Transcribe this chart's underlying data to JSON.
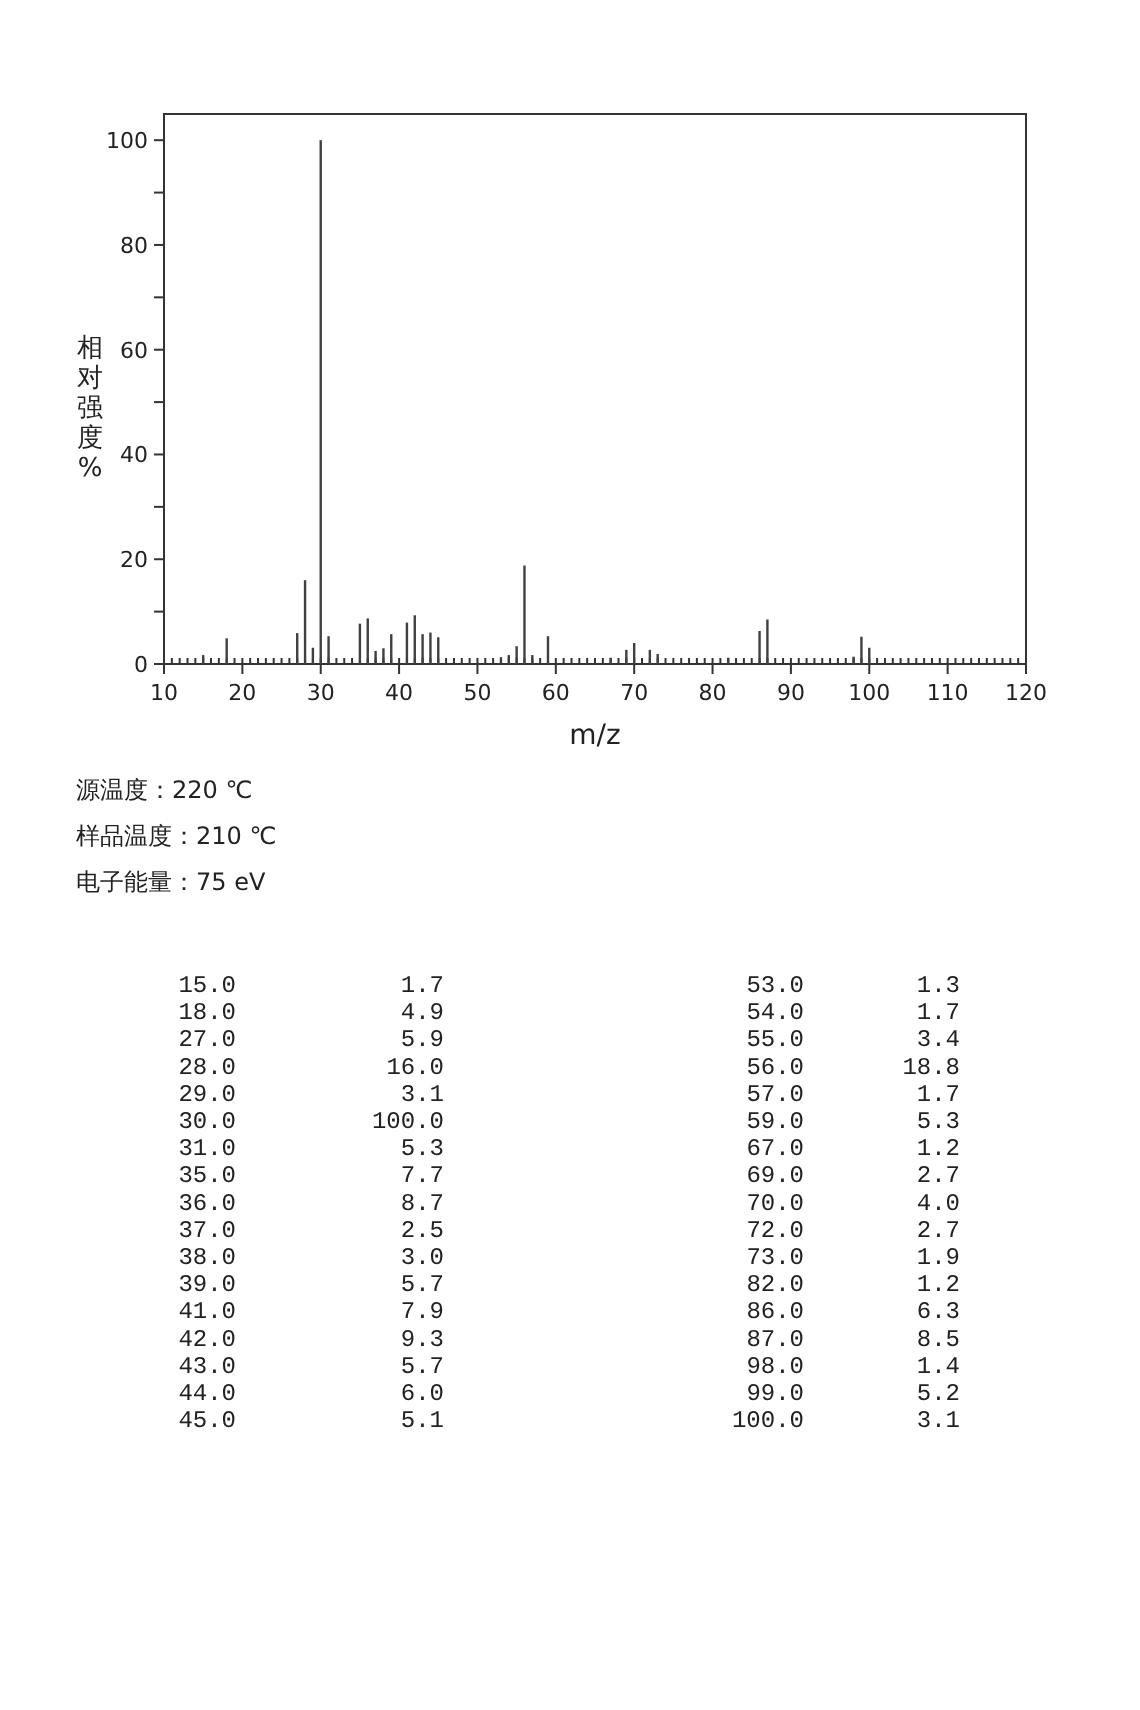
{
  "chart_data": {
    "type": "bar",
    "xlabel": "m/z",
    "ylabel": "相对强度%",
    "x": [
      15,
      18,
      27,
      28,
      29,
      30,
      31,
      35,
      36,
      37,
      38,
      39,
      41,
      42,
      43,
      44,
      45,
      53,
      54,
      55,
      56,
      57,
      59,
      67,
      69,
      70,
      72,
      73,
      82,
      86,
      87,
      98,
      99,
      100
    ],
    "values": [
      1.7,
      4.9,
      5.9,
      16.0,
      3.1,
      100.0,
      5.3,
      7.7,
      8.7,
      2.5,
      3.0,
      5.7,
      7.9,
      9.3,
      5.7,
      6.0,
      5.1,
      1.3,
      1.7,
      3.4,
      18.8,
      1.7,
      5.3,
      1.2,
      2.7,
      4.0,
      2.7,
      1.9,
      1.2,
      6.3,
      8.5,
      1.4,
      5.2,
      3.1
    ],
    "color": "#404040",
    "xlim": [
      10,
      120
    ],
    "xticks": [
      10,
      20,
      30,
      40,
      50,
      60,
      70,
      80,
      90,
      100,
      110,
      120
    ],
    "ylim": [
      0,
      105
    ],
    "yticks": [
      0,
      {
        "value": 10,
        "label": null
      },
      20,
      {
        "value": 30,
        "label": null
      },
      40,
      {
        "value": 50,
        "label": null
      },
      60,
      {
        "value": 70,
        "label": null
      },
      80,
      {
        "value": 90,
        "label": null
      },
      100
    ],
    "grid": false,
    "annotations": [
      "源温度：220 ℃",
      "样品温度：210 ℃",
      "电子能量：75 eV",
      "15.0",
      "1.7",
      "18.0",
      "4.9",
      "27.0",
      "5.9",
      "28.0",
      "16.0",
      "29.0",
      "3.1",
      "30.0",
      "100.0",
      "31.0",
      "5.3",
      "35.0",
      "7.7",
      "36.0",
      "8.7",
      "37.0",
      "2.5",
      "38.0",
      "3.0",
      "39.0",
      "5.7",
      "41.0",
      "7.9",
      "42.0",
      "9.3",
      "43.0",
      "5.7",
      "44.0",
      "6.0",
      "45.0",
      "5.1",
      "53.0",
      "1.3",
      "54.0",
      "1.7",
      "55.0",
      "3.4",
      "56.0",
      "18.8",
      "57.0",
      "1.7",
      "59.0",
      "5.3",
      "67.0",
      "1.2",
      "69.0",
      "2.7",
      "70.0",
      "4.0",
      "72.0",
      "2.7",
      "73.0",
      "1.9",
      "82.0",
      "1.2",
      "86.0",
      "6.3",
      "87.0",
      "8.5",
      "98.0",
      "1.4",
      "99.0",
      "5.2",
      "100.0",
      "3.1"
    ]
  }
}
